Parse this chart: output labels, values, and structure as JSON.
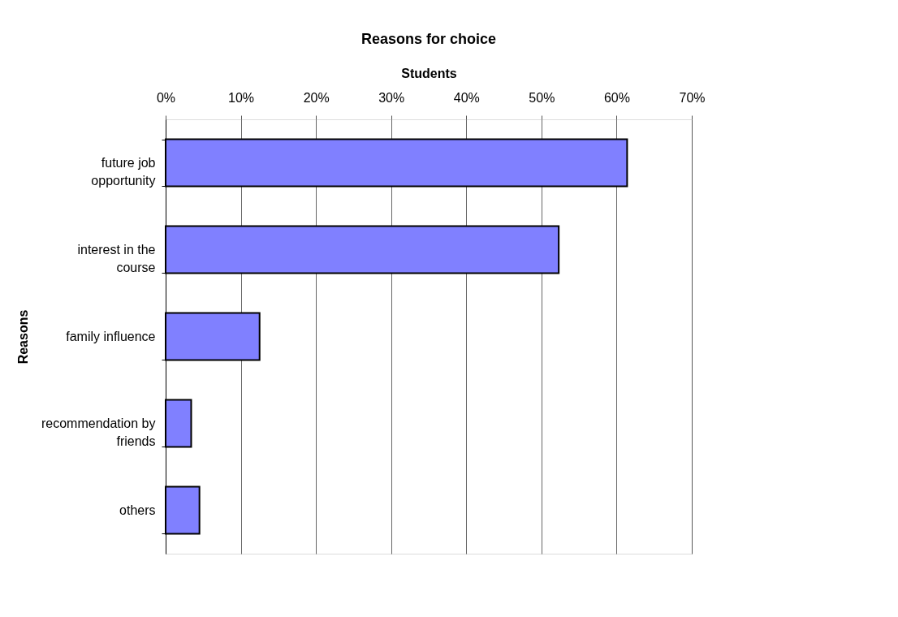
{
  "chart_data": {
    "type": "bar",
    "orientation": "horizontal",
    "title": "Reasons for choice",
    "xlabel": "Students",
    "ylabel": "Reasons",
    "categories": [
      "future job opportunity",
      "interest in the course",
      "family influence",
      "recommendation by friends",
      "others"
    ],
    "values": [
      61.4,
      52.3,
      12.5,
      3.4,
      4.5
    ],
    "color": "#8080ff",
    "xlim": [
      0,
      70
    ],
    "xticks": [
      {
        "value": 0,
        "label": "0%"
      },
      {
        "value": 10,
        "label": "10%"
      },
      {
        "value": 20,
        "label": "20%"
      },
      {
        "value": 30,
        "label": "30%"
      },
      {
        "value": 40,
        "label": "40%"
      },
      {
        "value": 50,
        "label": "50%"
      },
      {
        "value": 60,
        "label": "60%"
      },
      {
        "value": 70,
        "label": "70%"
      }
    ],
    "grid": "x",
    "legend": false
  }
}
